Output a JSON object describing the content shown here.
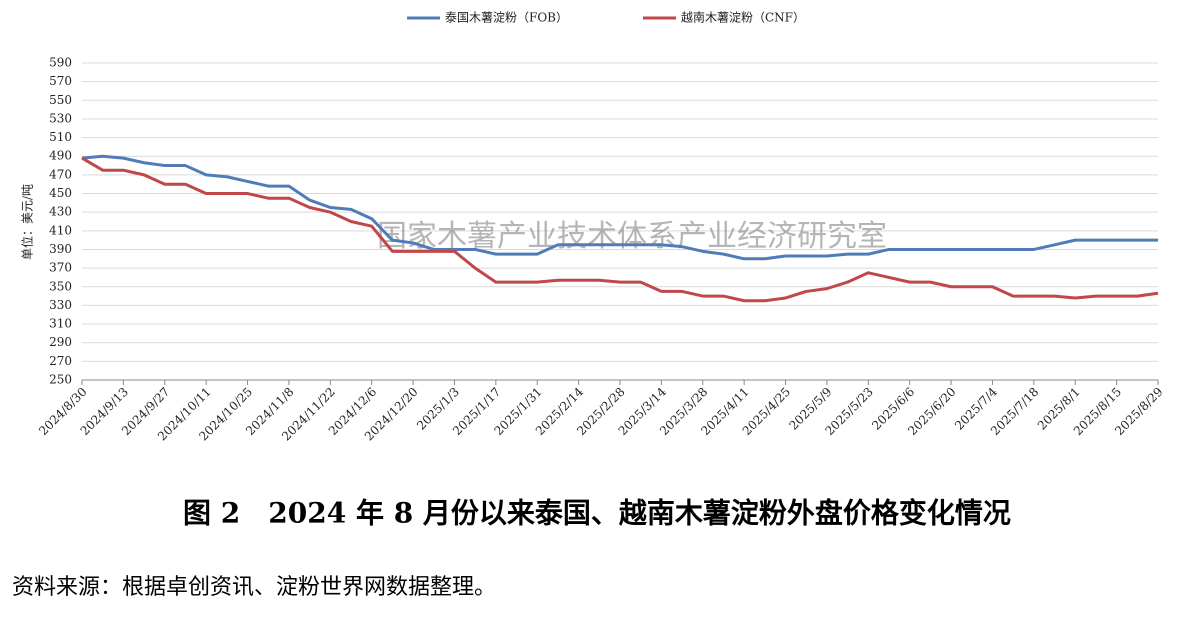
{
  "chart_data": {
    "type": "line",
    "title": "图 2　2024 年 8 月份以来泰国、越南木薯淀粉外盘价格变化情况",
    "source": "资料来源：根据卓创资讯、淀粉世界网数据整理。",
    "watermark": "国家木薯产业技术体系产业经济研究室",
    "y_label": "单位：美元/吨",
    "categories": [
      "2024/8/30",
      null,
      "2024/9/13",
      null,
      "2024/9/27",
      null,
      "2024/10/11",
      null,
      "2024/10/25",
      null,
      "2024/11/8",
      null,
      "2024/11/22",
      null,
      "2024/12/6",
      null,
      "2024/12/20",
      null,
      "2025/1/3",
      null,
      "2025/1/17",
      null,
      "2025/1/31",
      null,
      "2025/2/14",
      null,
      "2025/2/28",
      null,
      "2025/3/14",
      null,
      "2025/3/28",
      null,
      "2025/4/11",
      null,
      "2025/4/25",
      null,
      "2025/5/9",
      null,
      "2025/5/23",
      null,
      "2025/6/6",
      null,
      "2025/6/20",
      null,
      "2025/7/4",
      null,
      "2025/7/18",
      null,
      "2025/8/1",
      null,
      "2025/8/15",
      null,
      "2025/8/29"
    ],
    "series": [
      {
        "name": "泰国木薯淀粉（FOB）",
        "color": "#4f7cb8",
        "values": [
          488,
          490,
          488,
          483,
          480,
          480,
          470,
          468,
          463,
          458,
          458,
          443,
          435,
          433,
          423,
          400,
          397,
          390,
          390,
          390,
          385,
          385,
          385,
          395,
          395,
          395,
          395,
          395,
          395,
          393,
          388,
          385,
          380,
          380,
          383,
          383,
          383,
          385,
          385,
          390,
          390,
          390,
          390,
          390,
          390,
          390,
          390,
          395,
          400,
          400,
          400,
          400,
          400
        ]
      },
      {
        "name": "越南木薯淀粉（CNF）",
        "color": "#c0474a",
        "values": [
          488,
          475,
          475,
          470,
          460,
          460,
          450,
          450,
          450,
          445,
          445,
          435,
          430,
          420,
          415,
          388,
          388,
          388,
          388,
          370,
          355,
          355,
          355,
          357,
          357,
          357,
          355,
          355,
          345,
          345,
          340,
          340,
          335,
          335,
          338,
          345,
          348,
          355,
          365,
          360,
          355,
          355,
          350,
          350,
          350,
          340,
          340,
          340,
          338,
          340,
          340,
          340,
          343
        ]
      }
    ],
    "ylim": [
      250,
      590
    ],
    "yticks": [
      250,
      270,
      290,
      310,
      330,
      350,
      370,
      390,
      410,
      430,
      450,
      470,
      490,
      510,
      530,
      550,
      570,
      590
    ],
    "grid": true,
    "legend": "top"
  }
}
